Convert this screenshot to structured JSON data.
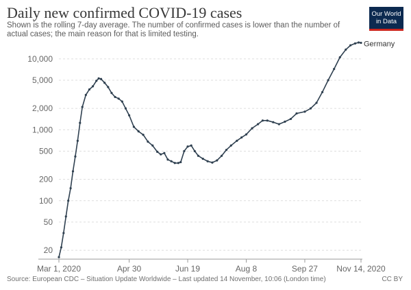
{
  "header": {
    "title": "Daily new confirmed COVID-19 cases",
    "subtitle": "Shown is the rolling 7-day average. The number of confirmed cases is lower than the number of actual cases; the main reason for that is limited testing.",
    "logo_line1": "Our World",
    "logo_line2": "in Data"
  },
  "footer": {
    "source": "Source: European CDC – Situation Update Worldwide – Last updated 14 November, 10:06 (London time)",
    "license": "CC BY"
  },
  "colors": {
    "series": "#2f4050",
    "grid": "#dddddd",
    "logo_bg": "#0c2a50",
    "logo_accent": "#ce261e"
  },
  "chart_data": {
    "type": "line",
    "title": "Daily new confirmed COVID-19 cases",
    "xlabel": "",
    "ylabel": "",
    "y_scale": "log",
    "ylim": [
      15,
      17000
    ],
    "xlim": [
      "2020-03-01",
      "2020-11-14"
    ],
    "y_ticks": [
      20,
      50,
      100,
      200,
      500,
      1000,
      2000,
      5000,
      10000
    ],
    "y_tick_labels": [
      "20",
      "50",
      "100",
      "200",
      "500",
      "1,000",
      "2,000",
      "5,000",
      "10,000"
    ],
    "x_ticks": [
      "2020-03-01",
      "2020-04-30",
      "2020-06-19",
      "2020-08-08",
      "2020-09-27",
      "2020-11-14"
    ],
    "x_tick_labels": [
      "Mar 1, 2020",
      "Apr 30",
      "Jun 19",
      "Aug 8",
      "Sep 27",
      "Nov 14, 2020"
    ],
    "grid": true,
    "series": [
      {
        "name": "Germany",
        "points": [
          [
            "2020-03-01",
            16
          ],
          [
            "2020-03-03",
            22
          ],
          [
            "2020-03-05",
            35
          ],
          [
            "2020-03-07",
            60
          ],
          [
            "2020-03-09",
            100
          ],
          [
            "2020-03-11",
            150
          ],
          [
            "2020-03-13",
            260
          ],
          [
            "2020-03-15",
            420
          ],
          [
            "2020-03-17",
            700
          ],
          [
            "2020-03-19",
            1250
          ],
          [
            "2020-03-21",
            2100
          ],
          [
            "2020-03-24",
            3100
          ],
          [
            "2020-03-27",
            3700
          ],
          [
            "2020-03-30",
            4100
          ],
          [
            "2020-04-02",
            4900
          ],
          [
            "2020-04-04",
            5300
          ],
          [
            "2020-04-06",
            5200
          ],
          [
            "2020-04-09",
            4600
          ],
          [
            "2020-04-12",
            4000
          ],
          [
            "2020-04-15",
            3300
          ],
          [
            "2020-04-18",
            2900
          ],
          [
            "2020-04-21",
            2750
          ],
          [
            "2020-04-24",
            2500
          ],
          [
            "2020-04-27",
            2000
          ],
          [
            "2020-04-30",
            1600
          ],
          [
            "2020-05-04",
            1100
          ],
          [
            "2020-05-08",
            950
          ],
          [
            "2020-05-12",
            850
          ],
          [
            "2020-05-16",
            680
          ],
          [
            "2020-05-20",
            600
          ],
          [
            "2020-05-24",
            490
          ],
          [
            "2020-05-27",
            450
          ],
          [
            "2020-05-30",
            470
          ],
          [
            "2020-06-02",
            380
          ],
          [
            "2020-06-05",
            360
          ],
          [
            "2020-06-08",
            340
          ],
          [
            "2020-06-11",
            340
          ],
          [
            "2020-06-13",
            350
          ],
          [
            "2020-06-16",
            500
          ],
          [
            "2020-06-19",
            580
          ],
          [
            "2020-06-22",
            600
          ],
          [
            "2020-06-25",
            500
          ],
          [
            "2020-06-28",
            430
          ],
          [
            "2020-07-02",
            390
          ],
          [
            "2020-07-06",
            360
          ],
          [
            "2020-07-10",
            345
          ],
          [
            "2020-07-14",
            370
          ],
          [
            "2020-07-18",
            430
          ],
          [
            "2020-07-22",
            520
          ],
          [
            "2020-07-26",
            600
          ],
          [
            "2020-07-31",
            700
          ],
          [
            "2020-08-04",
            780
          ],
          [
            "2020-08-08",
            860
          ],
          [
            "2020-08-13",
            1050
          ],
          [
            "2020-08-18",
            1200
          ],
          [
            "2020-08-22",
            1350
          ],
          [
            "2020-08-26",
            1350
          ],
          [
            "2020-08-31",
            1280
          ],
          [
            "2020-09-05",
            1200
          ],
          [
            "2020-09-10",
            1300
          ],
          [
            "2020-09-15",
            1420
          ],
          [
            "2020-09-20",
            1700
          ],
          [
            "2020-09-27",
            1800
          ],
          [
            "2020-10-02",
            2000
          ],
          [
            "2020-10-07",
            2400
          ],
          [
            "2020-10-12",
            3400
          ],
          [
            "2020-10-17",
            5000
          ],
          [
            "2020-10-22",
            7200
          ],
          [
            "2020-10-27",
            10500
          ],
          [
            "2020-11-01",
            13500
          ],
          [
            "2020-11-05",
            15500
          ],
          [
            "2020-11-09",
            16500
          ],
          [
            "2020-11-12",
            17000
          ],
          [
            "2020-11-14",
            16800
          ]
        ]
      }
    ]
  }
}
